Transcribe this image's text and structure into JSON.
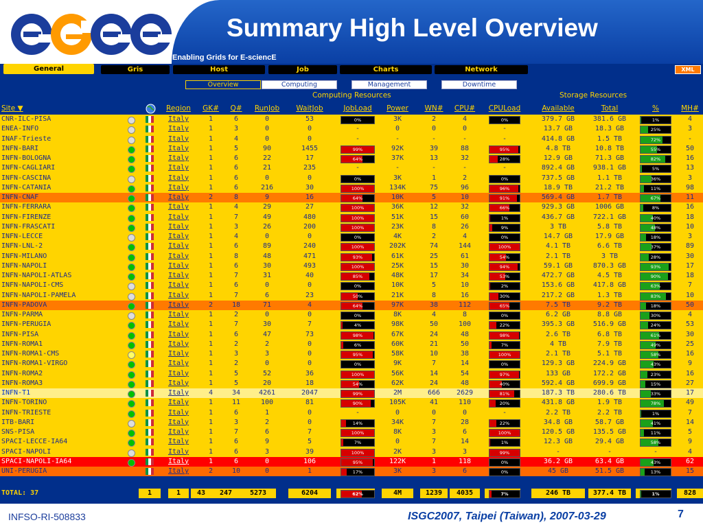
{
  "slide": {
    "title": "Summary High Level Overview",
    "subtitle": "Enabling Grids for E-sciencE",
    "logo_text": "eGee",
    "footer_left": "INFSO-RI-508833",
    "footer_right": "ISGC2007, Taipei (Taiwan), 2007-03-29",
    "page_number": "7"
  },
  "colors": {
    "header_blue": "#0a3fa4",
    "app_bg": "#012f8b",
    "row_yellow": "#ffd400",
    "accent_orange": "#ff7a00",
    "highlight_red": "#ff0000",
    "status_green": "#00c000"
  },
  "tabs": [
    "General",
    "Gris",
    "Host",
    "Job",
    "Charts",
    "Network"
  ],
  "active_tab": "General",
  "xml_button": "XML",
  "subtabs": [
    "Overview",
    "Computing",
    "Management",
    "Downtime"
  ],
  "active_subtab": "Overview",
  "groups": {
    "computing": "Computing Resources",
    "storage": "Storage Resources"
  },
  "columns": [
    "Site ▼",
    "Region",
    "GK#",
    "Q#",
    "RunJob",
    "WaitJob",
    "JobLoad",
    "Power",
    "WN#",
    "CPU#",
    "CPULoad",
    "Available",
    "Total",
    "%",
    "MH#"
  ],
  "rows": [
    {
      "site": "CNR-ILC-PISA",
      "status": "white",
      "region": "Italy",
      "gk": "1",
      "q": "6",
      "run": "0",
      "wait": "53",
      "jl": 0,
      "jll": "0%",
      "power": "3K",
      "wn": "2",
      "cpu": "4",
      "cl": 0,
      "cll": "0%",
      "avail": "379.7 GB",
      "total": "381.6 GB",
      "pct": 0.01,
      "pctl": "1%",
      "mh": "4",
      "bg": "yellow"
    },
    {
      "site": "ENEA-INFO",
      "status": "white",
      "region": "Italy",
      "gk": "1",
      "q": "3",
      "run": "0",
      "wait": "0",
      "jl": null,
      "jll": "-",
      "power": "0",
      "wn": "0",
      "cpu": "0",
      "cl": null,
      "cll": "-",
      "avail": "13.7 GB",
      "total": "18.3 GB",
      "pct": 0.25,
      "pctl": "25%",
      "mh": "3",
      "bg": "yellow"
    },
    {
      "site": "INAF-Trieste",
      "status": "white",
      "region": "Italy",
      "gk": "1",
      "q": "4",
      "run": "0",
      "wait": "0",
      "jl": null,
      "jll": "-",
      "power": "-",
      "wn": "-",
      "cpu": "-",
      "cl": null,
      "cll": "-",
      "avail": "414.8 GB",
      "total": "1.5 TB",
      "pct": 0.72,
      "pctl": "72%",
      "mh": "-",
      "bg": "yellow"
    },
    {
      "site": "INFN-BARI",
      "status": "green",
      "region": "Italy",
      "gk": "1",
      "q": "5",
      "run": "90",
      "wait": "1455",
      "jl": 0.99,
      "jll": "99%",
      "power": "92K",
      "wn": "39",
      "cpu": "88",
      "cl": 0.95,
      "cll": "95%",
      "avail": "4.8 TB",
      "total": "10.8 TB",
      "pct": 0.55,
      "pctl": "55%",
      "mh": "50",
      "bg": "yellow"
    },
    {
      "site": "INFN-BOLOGNA",
      "status": "green",
      "region": "Italy",
      "gk": "1",
      "q": "6",
      "run": "22",
      "wait": "17",
      "jl": 0.64,
      "jll": "64%",
      "power": "37K",
      "wn": "13",
      "cpu": "32",
      "cl": 0.28,
      "cll": "28%",
      "avail": "12.9 GB",
      "total": "71.3 GB",
      "pct": 0.82,
      "pctl": "82%",
      "mh": "16",
      "bg": "yellow"
    },
    {
      "site": "INFN-CAGLIARI",
      "status": "green",
      "region": "Italy",
      "gk": "1",
      "q": "6",
      "run": "21",
      "wait": "235",
      "jl": null,
      "jll": "-",
      "power": "-",
      "wn": "-",
      "cpu": "-",
      "cl": null,
      "cll": "-",
      "avail": "892.4 GB",
      "total": "938.1 GB",
      "pct": 0.05,
      "pctl": "5%",
      "mh": "13",
      "bg": "yellow"
    },
    {
      "site": "INFN-CASCINA",
      "status": "white",
      "region": "Italy",
      "gk": "1",
      "q": "6",
      "run": "0",
      "wait": "0",
      "jl": 0,
      "jll": "0%",
      "power": "3K",
      "wn": "1",
      "cpu": "2",
      "cl": 0,
      "cll": "0%",
      "avail": "737.5 GB",
      "total": "1.1 TB",
      "pct": 0.36,
      "pctl": "36%",
      "mh": "3",
      "bg": "yellow"
    },
    {
      "site": "INFN-CATANIA",
      "status": "green",
      "region": "Italy",
      "gk": "1",
      "q": "6",
      "run": "216",
      "wait": "30",
      "jl": 1,
      "jll": "100%",
      "power": "134K",
      "wn": "75",
      "cpu": "96",
      "cl": 0.96,
      "cll": "96%",
      "avail": "18.9 TB",
      "total": "21.2 TB",
      "pct": 0.11,
      "pctl": "11%",
      "mh": "98",
      "bg": "yellow"
    },
    {
      "site": "INFN-CNAF",
      "status": "green",
      "region": "Italy",
      "gk": "2",
      "q": "8",
      "run": "9",
      "wait": "16",
      "jl": 0.64,
      "jll": "64%",
      "power": "10K",
      "wn": "5",
      "cpu": "10",
      "cl": 0.91,
      "cll": "91%",
      "avail": "569.4 GB",
      "total": "1.7 TB",
      "pct": 0.67,
      "pctl": "67%",
      "mh": "11",
      "bg": "orange"
    },
    {
      "site": "INFN-FERRARA",
      "status": "green",
      "region": "Italy",
      "gk": "1",
      "q": "4",
      "run": "29",
      "wait": "27",
      "jl": 1,
      "jll": "100%",
      "power": "36K",
      "wn": "12",
      "cpu": "32",
      "cl": 0.66,
      "cll": "66%",
      "avail": "929.3 GB",
      "total": "1006 GB",
      "pct": 0.08,
      "pctl": "8%",
      "mh": "16",
      "bg": "yellow"
    },
    {
      "site": "INFN-FIRENZE",
      "status": "green",
      "region": "Italy",
      "gk": "1",
      "q": "7",
      "run": "49",
      "wait": "480",
      "jl": 1,
      "jll": "100%",
      "power": "51K",
      "wn": "15",
      "cpu": "60",
      "cl": 0.01,
      "cll": "1%",
      "avail": "436.7 GB",
      "total": "722.1 GB",
      "pct": 0.4,
      "pctl": "40%",
      "mh": "18",
      "bg": "yellow"
    },
    {
      "site": "INFN-FRASCATI",
      "status": "green",
      "region": "Italy",
      "gk": "1",
      "q": "3",
      "run": "26",
      "wait": "200",
      "jl": 1,
      "jll": "100%",
      "power": "23K",
      "wn": "8",
      "cpu": "26",
      "cl": 0.09,
      "cll": "9%",
      "avail": "3 TB",
      "total": "5.8 TB",
      "pct": 0.48,
      "pctl": "48%",
      "mh": "10",
      "bg": "yellow"
    },
    {
      "site": "INFN-LECCE",
      "status": "white",
      "region": "Italy",
      "gk": "1",
      "q": "4",
      "run": "0",
      "wait": "0",
      "jl": 0,
      "jll": "0%",
      "power": "4K",
      "wn": "2",
      "cpu": "4",
      "cl": 0,
      "cll": "0%",
      "avail": "14.7 GB",
      "total": "17.9 GB",
      "pct": 0.18,
      "pctl": "18%",
      "mh": "3",
      "bg": "yellow"
    },
    {
      "site": "INFN-LNL-2",
      "status": "green",
      "region": "Italy",
      "gk": "1",
      "q": "6",
      "run": "89",
      "wait": "240",
      "jl": 1,
      "jll": "100%",
      "power": "202K",
      "wn": "74",
      "cpu": "144",
      "cl": 1,
      "cll": "100%",
      "avail": "4.1 TB",
      "total": "6.6 TB",
      "pct": 0.37,
      "pctl": "37%",
      "mh": "89",
      "bg": "yellow"
    },
    {
      "site": "INFN-MILANO",
      "status": "green",
      "region": "Italy",
      "gk": "1",
      "q": "8",
      "run": "48",
      "wait": "471",
      "jl": 0.93,
      "jll": "93%",
      "power": "61K",
      "wn": "25",
      "cpu": "61",
      "cl": 0.54,
      "cll": "54%",
      "avail": "2.1 TB",
      "total": "3 TB",
      "pct": 0.28,
      "pctl": "28%",
      "mh": "30",
      "bg": "yellow"
    },
    {
      "site": "INFN-NAPOLI",
      "status": "green",
      "region": "Italy",
      "gk": "1",
      "q": "6",
      "run": "30",
      "wait": "493",
      "jl": 1,
      "jll": "100%",
      "power": "25K",
      "wn": "15",
      "cpu": "30",
      "cl": 0.94,
      "cll": "94%",
      "avail": "59.1 GB",
      "total": "870.3 GB",
      "pct": 0.93,
      "pctl": "93%",
      "mh": "17",
      "bg": "yellow"
    },
    {
      "site": "INFN-NAPOLI-ATLAS",
      "status": "green",
      "region": "Italy",
      "gk": "1",
      "q": "7",
      "run": "31",
      "wait": "40",
      "jl": 0.85,
      "jll": "85%",
      "power": "48K",
      "wn": "17",
      "cpu": "34",
      "cl": 0.53,
      "cll": "53%",
      "avail": "472.7 GB",
      "total": "4.5 TB",
      "pct": 0.9,
      "pctl": "90%",
      "mh": "18",
      "bg": "yellow"
    },
    {
      "site": "INFN-NAPOLI-CMS",
      "status": "white",
      "region": "Italy",
      "gk": "1",
      "q": "6",
      "run": "0",
      "wait": "0",
      "jl": 0,
      "jll": "0%",
      "power": "10K",
      "wn": "5",
      "cpu": "10",
      "cl": 0.02,
      "cll": "2%",
      "avail": "153.6 GB",
      "total": "417.8 GB",
      "pct": 0.63,
      "pctl": "63%",
      "mh": "7",
      "bg": "yellow"
    },
    {
      "site": "INFN-NAPOLI-PAMELA",
      "status": "white",
      "region": "Italy",
      "gk": "1",
      "q": "7",
      "run": "6",
      "wait": "23",
      "jl": 0.5,
      "jll": "50%",
      "power": "21K",
      "wn": "8",
      "cpu": "16",
      "cl": 0.3,
      "cll": "30%",
      "avail": "217.2 GB",
      "total": "1.3 TB",
      "pct": 0.83,
      "pctl": "83%",
      "mh": "10",
      "bg": "yellow"
    },
    {
      "site": "INFN-PADOVA",
      "status": "green",
      "region": "Italy",
      "gk": "2",
      "q": "18",
      "run": "71",
      "wait": "4",
      "jl": 0.64,
      "jll": "64%",
      "power": "97K",
      "wn": "38",
      "cpu": "112",
      "cl": 0.65,
      "cll": "65%",
      "avail": "7.5 TB",
      "total": "9.2 TB",
      "pct": 0.18,
      "pctl": "18%",
      "mh": "50",
      "bg": "orange"
    },
    {
      "site": "INFN-PARMA",
      "status": "white",
      "region": "Italy",
      "gk": "1",
      "q": "2",
      "run": "0",
      "wait": "0",
      "jl": 0,
      "jll": "0%",
      "power": "8K",
      "wn": "4",
      "cpu": "8",
      "cl": 0,
      "cll": "0%",
      "avail": "6.2 GB",
      "total": "8.8 GB",
      "pct": 0.3,
      "pctl": "30%",
      "mh": "4",
      "bg": "yellow"
    },
    {
      "site": "INFN-PERUGIA",
      "status": "green",
      "region": "Italy",
      "gk": "1",
      "q": "7",
      "run": "30",
      "wait": "7",
      "jl": 0.04,
      "jll": "4%",
      "power": "98K",
      "wn": "50",
      "cpu": "100",
      "cl": 0.22,
      "cll": "22%",
      "avail": "395.3 GB",
      "total": "516.9 GB",
      "pct": 0.24,
      "pctl": "24%",
      "mh": "53",
      "bg": "yellow"
    },
    {
      "site": "INFN-PISA",
      "status": "green",
      "region": "Italy",
      "gk": "1",
      "q": "6",
      "run": "47",
      "wait": "73",
      "jl": 0.98,
      "jll": "98%",
      "power": "67K",
      "wn": "24",
      "cpu": "48",
      "cl": 0.98,
      "cll": "98%",
      "avail": "2.6 TB",
      "total": "6.8 TB",
      "pct": 0.61,
      "pctl": "61%",
      "mh": "30",
      "bg": "yellow"
    },
    {
      "site": "INFN-ROMA1",
      "status": "green",
      "region": "Italy",
      "gk": "1",
      "q": "2",
      "run": "2",
      "wait": "0",
      "jl": 0.06,
      "jll": "6%",
      "power": "60K",
      "wn": "21",
      "cpu": "50",
      "cl": 0.07,
      "cll": "7%",
      "avail": "4 TB",
      "total": "7.9 TB",
      "pct": 0.49,
      "pctl": "49%",
      "mh": "25",
      "bg": "yellow"
    },
    {
      "site": "INFN-ROMA1-CMS",
      "status": "yellow",
      "region": "Italy",
      "gk": "1",
      "q": "3",
      "run": "3",
      "wait": "0",
      "jl": 0.95,
      "jll": "95%",
      "power": "58K",
      "wn": "10",
      "cpu": "38",
      "cl": 1,
      "cll": "100%",
      "avail": "2.1 TB",
      "total": "5.1 TB",
      "pct": 0.58,
      "pctl": "58%",
      "mh": "16",
      "bg": "yellow"
    },
    {
      "site": "INFN-ROMA1-VIRGO",
      "status": "green",
      "region": "Italy",
      "gk": "1",
      "q": "2",
      "run": "0",
      "wait": "0",
      "jl": 0,
      "jll": "0%",
      "power": "9K",
      "wn": "7",
      "cpu": "14",
      "cl": 0,
      "cll": "0%",
      "avail": "129.3 GB",
      "total": "224.9 GB",
      "pct": 0.43,
      "pctl": "43%",
      "mh": "9",
      "bg": "yellow"
    },
    {
      "site": "INFN-ROMA2",
      "status": "green",
      "region": "Italy",
      "gk": "1",
      "q": "5",
      "run": "52",
      "wait": "36",
      "jl": 1,
      "jll": "100%",
      "power": "56K",
      "wn": "14",
      "cpu": "54",
      "cl": 0.97,
      "cll": "97%",
      "avail": "133 GB",
      "total": "172.2 GB",
      "pct": 0.23,
      "pctl": "23%",
      "mh": "16",
      "bg": "yellow"
    },
    {
      "site": "INFN-ROMA3",
      "status": "green",
      "region": "Italy",
      "gk": "1",
      "q": "5",
      "run": "20",
      "wait": "18",
      "jl": 0.54,
      "jll": "54%",
      "power": "62K",
      "wn": "24",
      "cpu": "48",
      "cl": 0.4,
      "cll": "40%",
      "avail": "592.4 GB",
      "total": "699.9 GB",
      "pct": 0.15,
      "pctl": "15%",
      "mh": "27",
      "bg": "yellow"
    },
    {
      "site": "INFN-T1",
      "status": "green",
      "region": "Italy",
      "gk": "4",
      "q": "34",
      "run": "4261",
      "wait": "2047",
      "jl": 0.99,
      "jll": "99%",
      "power": "2M",
      "wn": "666",
      "cpu": "2629",
      "cl": 0.81,
      "cll": "81%",
      "avail": "187.3 TB",
      "total": "280.6 TB",
      "pct": 0.33,
      "pctl": "33%",
      "mh": "17",
      "bg": "light"
    },
    {
      "site": "INFN-TORINO",
      "status": "green",
      "region": "Italy",
      "gk": "1",
      "q": "11",
      "run": "100",
      "wait": "81",
      "jl": 0.9,
      "jll": "90%",
      "power": "105K",
      "wn": "41",
      "cpu": "110",
      "cl": 0.2,
      "cll": "20%",
      "avail": "431.8 GB",
      "total": "1.9 TB",
      "pct": 0.78,
      "pctl": "78%",
      "mh": "49",
      "bg": "yellow"
    },
    {
      "site": "INFN-TRIESTE",
      "status": "green",
      "region": "Italy",
      "gk": "1",
      "q": "6",
      "run": "1",
      "wait": "0",
      "jl": null,
      "jll": "-",
      "power": "0",
      "wn": "0",
      "cpu": "0",
      "cl": null,
      "cll": "-",
      "avail": "2.2 TB",
      "total": "2.2 TB",
      "pct": 0.01,
      "pctl": "1%",
      "mh": "7",
      "bg": "yellow"
    },
    {
      "site": "ITB-BARI",
      "status": "white",
      "region": "Italy",
      "gk": "1",
      "q": "3",
      "run": "2",
      "wait": "0",
      "jl": 0.14,
      "jll": "14%",
      "power": "34K",
      "wn": "7",
      "cpu": "28",
      "cl": 0.22,
      "cll": "22%",
      "avail": "34.8 GB",
      "total": "58.7 GB",
      "pct": 0.41,
      "pctl": "41%",
      "mh": "14",
      "bg": "yellow"
    },
    {
      "site": "SNS-PISA",
      "status": "green",
      "region": "Italy",
      "gk": "1",
      "q": "7",
      "run": "6",
      "wait": "7",
      "jl": 1,
      "jll": "100%",
      "power": "8K",
      "wn": "3",
      "cpu": "6",
      "cl": 1,
      "cll": "100%",
      "avail": "120.5 GB",
      "total": "135.5 GB",
      "pct": 0.11,
      "pctl": "11%",
      "mh": "5",
      "bg": "yellow"
    },
    {
      "site": "SPACI-LECCE-IA64",
      "status": "green",
      "region": "Italy",
      "gk": "1",
      "q": "6",
      "run": "9",
      "wait": "5",
      "jl": 0.07,
      "jll": "7%",
      "power": "0",
      "wn": "7",
      "cpu": "14",
      "cl": 0.01,
      "cll": "1%",
      "avail": "12.3 GB",
      "total": "29.4 GB",
      "pct": 0.58,
      "pctl": "58%",
      "mh": "9",
      "bg": "yellow"
    },
    {
      "site": "SPACI-NAPOLI",
      "status": "white",
      "region": "Italy",
      "gk": "1",
      "q": "6",
      "run": "3",
      "wait": "39",
      "jl": 1,
      "jll": "100%",
      "power": "2K",
      "wn": "3",
      "cpu": "3",
      "cl": 0.99,
      "cll": "99%",
      "avail": "-",
      "total": "-",
      "pct": null,
      "pctl": "-",
      "mh": "4",
      "bg": "yellow"
    },
    {
      "site": "SPACI-NAPOLI-IA64",
      "status": "green",
      "region": "Italy",
      "gk": "1",
      "q": "6",
      "run": "0",
      "wait": "106",
      "jl": 0.95,
      "jll": "95%",
      "power": "122K",
      "wn": "1",
      "cpu": "118",
      "cl": 0,
      "cll": "0%",
      "avail": "36.2 GB",
      "total": "63.4 GB",
      "pct": 0.43,
      "pctl": "43%",
      "mh": "62",
      "bg": "red"
    },
    {
      "site": "UNI-PERUGIA",
      "status": "none",
      "region": "Italy",
      "gk": "2",
      "q": "10",
      "run": "0",
      "wait": "1",
      "jl": 0.17,
      "jll": "17%",
      "power": "3K",
      "wn": "3",
      "cpu": "6",
      "cl": 0,
      "cll": "0%",
      "avail": "45 GB",
      "total": "51.5 GB",
      "pct": 0.13,
      "pctl": "13%",
      "mh": "15",
      "bg": "darkorange"
    }
  ],
  "total": {
    "label": "TOTAL: 37",
    "gk": "1",
    "q": "1",
    "run": "43",
    "wait": "247",
    "waitjob": "5273",
    "jobs": "6204",
    "jl": 0.62,
    "jll": "62%",
    "power": "4M",
    "wn": "1239",
    "cpu": "4035",
    "cl": 0.07,
    "cll": "7%",
    "avail": "246 TB",
    "total": "377.4 TB",
    "pct": 0.01,
    "pctl": "1%",
    "mh": "828"
  }
}
